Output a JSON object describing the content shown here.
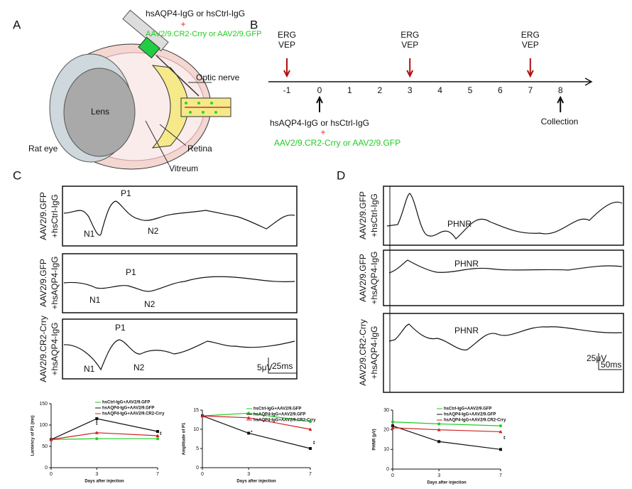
{
  "panels": {
    "A": {
      "letter": "A",
      "inject_1": "hsAQP4-IgG or hsCtrl-IgG",
      "plus": "+",
      "inject_2": "AAV2/9.CR2-Crry or AAV2/9.GFP",
      "lens": "Lens",
      "optic_nerve": "Optic nerve",
      "retina": "Retina",
      "vitreum": "Vitreum",
      "rat_eye": "Rat eye"
    },
    "B": {
      "letter": "B",
      "ticks": [
        -1,
        0,
        1,
        2,
        3,
        4,
        5,
        6,
        7,
        8
      ],
      "test_markers": [
        [
          "ERG",
          "VEP"
        ],
        [
          "ERG",
          "VEP"
        ],
        [
          "ERG",
          "VEP"
        ]
      ],
      "inject_1": "hsAQP4-IgG or hsCtrl-IgG",
      "plus": "+",
      "inject_2": "AAV2/9.CR2-Crry or AAV2/9.GFP",
      "collection": "Collection"
    },
    "C": {
      "letter": "C",
      "rows": [
        [
          "AAV2/9.GFP",
          "+hsCtrl-IgG"
        ],
        [
          "AAV2/9.GFP",
          "+hsAQP4-IgG"
        ],
        [
          "AAV2/9.CR2-Crry",
          "+hsAQP4-IgG"
        ]
      ],
      "n1": "N1",
      "p1": "P1",
      "n2": "N2",
      "scale_v": "5μV",
      "scale_t": "25ms"
    },
    "D": {
      "letter": "D",
      "rows": [
        [
          "AAV2/9.GFP",
          "+hsCtrl-IgG"
        ],
        [
          "AAV2/9.GFP",
          "+hsAQP4-IgG"
        ],
        [
          "AAV2/9.CR2-Crry",
          "+hsAQP4-IgG"
        ]
      ],
      "phnr": "PHNR",
      "scale_v": "25μV",
      "scale_t": "50ms"
    }
  },
  "chart_data": [
    {
      "type": "line",
      "ylabel": "Lantency of P1 (ms)",
      "xlabel": "Days after injection",
      "x": [
        0,
        3,
        7
      ],
      "xlim": [
        0,
        7
      ],
      "xticks": [
        0,
        3,
        7
      ],
      "ylim": [
        0,
        150
      ],
      "yticks": [
        0,
        50,
        100,
        150
      ],
      "series": [
        {
          "name": "hsCtrl-IgG+AAV2/9.GFP",
          "color": "#22cc22",
          "values": [
            66,
            68,
            68
          ]
        },
        {
          "name": "hsAQP4-IgG+AAV2/9.GFP",
          "color": "#111111",
          "values": [
            66,
            115,
            85
          ]
        },
        {
          "name": "hsAQP4-IgG+AAV2/9.CR2-Crry",
          "color": "#cc2222",
          "values": [
            66,
            82,
            75
          ]
        }
      ],
      "annotations": [
        "****",
        "**"
      ]
    },
    {
      "type": "line",
      "ylabel": "Amplitude of P1",
      "xlabel": "Days after injection",
      "x": [
        0,
        3,
        7
      ],
      "xlim": [
        0,
        7
      ],
      "xticks": [
        0,
        3,
        7
      ],
      "ylim": [
        0,
        15
      ],
      "yticks": [
        0,
        5,
        10,
        15
      ],
      "series": [
        {
          "name": "hsCtrl-IgG+AAV2/9.GFP",
          "color": "#22cc22",
          "values": [
            13.5,
            14.2,
            12
          ]
        },
        {
          "name": "hsAQP4-IgG+AAV2/9.GFP",
          "color": "#111111",
          "values": [
            13.5,
            9,
            5
          ]
        },
        {
          "name": "hsAQP4-IgG+AAV2/9.CR2-Crry",
          "color": "#cc2222",
          "values": [
            13.5,
            13,
            10
          ]
        }
      ],
      "annotations": [
        "*",
        "**"
      ]
    },
    {
      "type": "line",
      "ylabel": "PHNR (μV)",
      "xlabel": "Days after injection",
      "x": [
        0,
        3,
        7
      ],
      "xlim": [
        0,
        7
      ],
      "xticks": [
        0,
        3,
        7
      ],
      "ylim": [
        0,
        30
      ],
      "yticks": [
        0,
        10,
        20,
        30
      ],
      "series": [
        {
          "name": "hsCtrl-IgG+AAV2/9.GFP",
          "color": "#22cc22",
          "values": [
            24,
            23,
            22
          ]
        },
        {
          "name": "hsAQP4-IgG+AAV2/9.GFP",
          "color": "#111111",
          "values": [
            22,
            14,
            10
          ]
        },
        {
          "name": "hsAQP4-IgG+AAV2/9.CR2-Crry",
          "color": "#cc2222",
          "values": [
            21,
            20,
            19
          ]
        }
      ],
      "annotations": [
        "**"
      ]
    }
  ]
}
